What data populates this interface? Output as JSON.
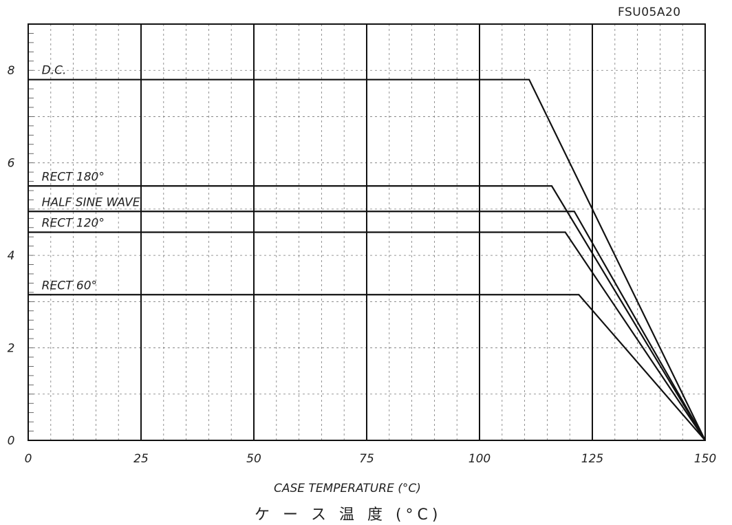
{
  "part_number": "FSU05A20",
  "chart_data": {
    "type": "line",
    "title": "",
    "xlabel": "CASE TEMPERATURE (°C)",
    "xlabel_jp": "ケ ー ス 温 度 (°C)",
    "ylabel": "",
    "xlim": [
      0,
      150
    ],
    "ylim": [
      0,
      9
    ],
    "x_ticks": [
      0,
      25,
      50,
      75,
      100,
      125,
      150
    ],
    "y_ticks": [
      0,
      2,
      4,
      6,
      8
    ],
    "grid": true,
    "series": [
      {
        "name": "D.C.",
        "x": [
          0,
          111,
          150
        ],
        "y": [
          7.8,
          7.8,
          0
        ]
      },
      {
        "name": "RECT 180°",
        "x": [
          0,
          116,
          150
        ],
        "y": [
          5.5,
          5.5,
          0
        ]
      },
      {
        "name": "HALF SINE WAVE",
        "x": [
          0,
          121,
          150
        ],
        "y": [
          4.95,
          4.95,
          0
        ]
      },
      {
        "name": "RECT 120°",
        "x": [
          0,
          119,
          150
        ],
        "y": [
          4.5,
          4.5,
          0
        ]
      },
      {
        "name": "RECT 60°",
        "x": [
          0,
          122,
          150
        ],
        "y": [
          3.15,
          3.15,
          0
        ]
      }
    ],
    "colors": {
      "line": "#111111",
      "grid_major": "#111111",
      "grid_minor": "#777777"
    }
  }
}
